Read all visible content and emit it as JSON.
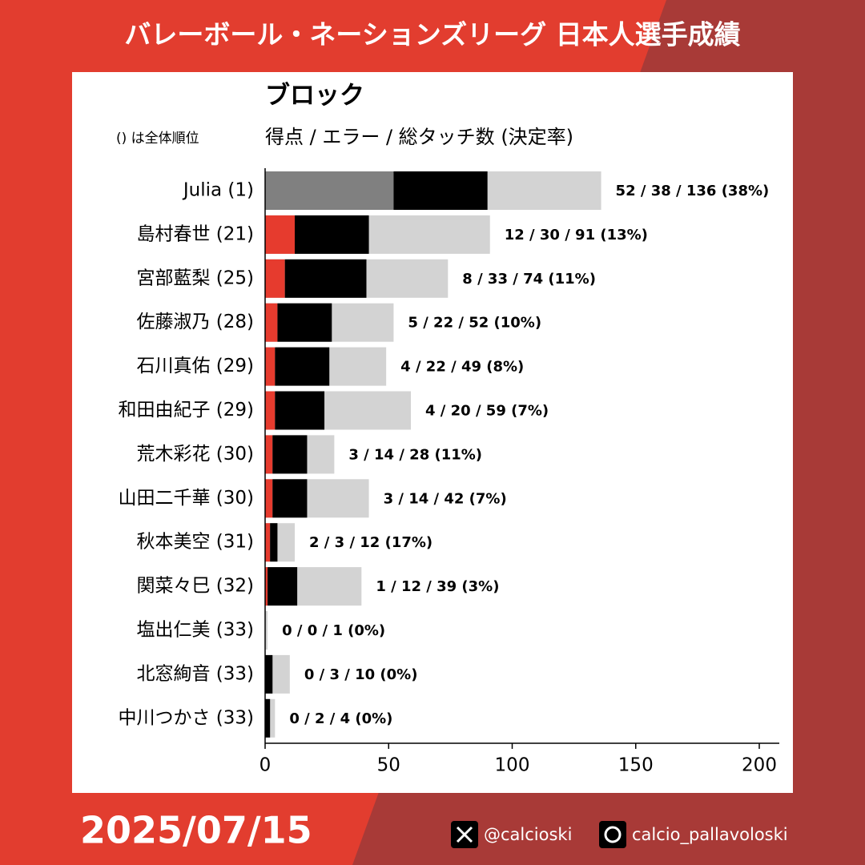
{
  "header": {
    "title": "バレーボール・ネーションズリーグ 日本人選手成績"
  },
  "chart_data": {
    "type": "bar",
    "orientation": "horizontal",
    "stacked": true,
    "title": "ブロック",
    "subtitle": "得点 / エラー / 総タッチ数 (決定率)",
    "note": "() は全体順位",
    "categories": [
      "Julia (1)",
      "島村春世 (21)",
      "宮部藍梨 (25)",
      "佐藤淑乃 (28)",
      "石川真佑 (29)",
      "和田由紀子 (29)",
      "荒木彩花 (30)",
      "山田二千華 (30)",
      "秋本美空 (31)",
      "関菜々巳 (32)",
      "塩出仁美 (33)",
      "北窓絢音 (33)",
      "中川つかさ (33)"
    ],
    "series": [
      {
        "role": "points",
        "colors": [
          "#808080",
          "#e63b2e",
          "#e63b2e",
          "#e63b2e",
          "#e63b2e",
          "#e63b2e",
          "#e63b2e",
          "#e63b2e",
          "#e63b2e",
          "#e63b2e",
          "#e63b2e",
          "#e63b2e",
          "#e63b2e"
        ],
        "values": [
          52,
          12,
          8,
          5,
          4,
          4,
          3,
          3,
          2,
          1,
          0,
          0,
          0
        ]
      },
      {
        "role": "errors",
        "color": "#000000",
        "values": [
          38,
          30,
          33,
          22,
          22,
          20,
          14,
          14,
          3,
          12,
          0,
          3,
          2
        ]
      },
      {
        "role": "total",
        "color": "#d3d3d3",
        "values": [
          136,
          91,
          74,
          52,
          49,
          59,
          28,
          42,
          12,
          39,
          1,
          10,
          4
        ],
        "value_labels": [
          "52 / 38 / 136 (38%)",
          "12 / 30 / 91 (13%)",
          "8 / 33 / 74 (11%)",
          "5 / 22 / 52 (10%)",
          "4 / 22 / 49 (8%)",
          "4 / 20 / 59 (7%)",
          "3 / 14 / 28 (11%)",
          "3 / 14 / 42 (7%)",
          "2 / 3 / 12 (17%)",
          "1 / 12 / 39 (3%)",
          "0 / 0 / 1 (0%)",
          "0 / 3 / 10 (0%)",
          "0 / 2 / 4 (0%)"
        ]
      }
    ],
    "xlim": [
      0,
      210
    ],
    "xticks": [
      0,
      50,
      100,
      150,
      200
    ]
  },
  "footer": {
    "date": "2025/07/15",
    "x_handle": "@calcioski",
    "threads_handle": "calcio_pallavoloski"
  }
}
